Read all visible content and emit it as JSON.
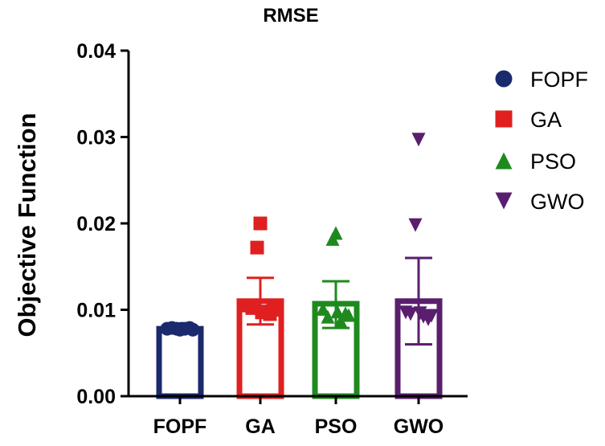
{
  "chart_data": {
    "type": "bar",
    "title": "RMSE",
    "xlabel": "",
    "ylabel": "Objective Function",
    "ylim": [
      0,
      0.04
    ],
    "yticks": [
      "0.00",
      "0.01",
      "0.02",
      "0.03",
      "0.04"
    ],
    "ytick_values": [
      0,
      0.01,
      0.02,
      0.03,
      0.04
    ],
    "grid": false,
    "legend_position": "right",
    "categories": [
      "FOPF",
      "GA",
      "PSO",
      "GWO"
    ],
    "series": [
      {
        "name": "FOPF",
        "color": "#1a2a6c",
        "marker": "circle",
        "mean": 0.0078,
        "error_low": 0.0078,
        "error_high": 0.0078,
        "points": [
          0.0077,
          0.0078,
          0.0078,
          0.0079,
          0.0079,
          0.0078,
          0.0077,
          0.0078
        ]
      },
      {
        "name": "GA",
        "color": "#e02020",
        "marker": "square",
        "mean": 0.011,
        "error_low": 0.0083,
        "error_high": 0.0137,
        "points": [
          0.02,
          0.0172,
          0.0098,
          0.0102,
          0.0095,
          0.0105,
          0.01,
          0.0097
        ]
      },
      {
        "name": "PSO",
        "color": "#1e8a1e",
        "marker": "triangle-up",
        "mean": 0.0107,
        "error_low": 0.0079,
        "error_high": 0.0133,
        "points": [
          0.0189,
          0.0182,
          0.0087,
          0.0092,
          0.0096,
          0.0101,
          0.0094,
          0.0098
        ]
      },
      {
        "name": "GWO",
        "color": "#5a1e6e",
        "marker": "triangle-down",
        "mean": 0.011,
        "error_low": 0.006,
        "error_high": 0.016,
        "points": [
          0.0297,
          0.0198,
          0.0092,
          0.0095,
          0.0089,
          0.0097,
          0.0093,
          0.0096
        ]
      }
    ]
  }
}
